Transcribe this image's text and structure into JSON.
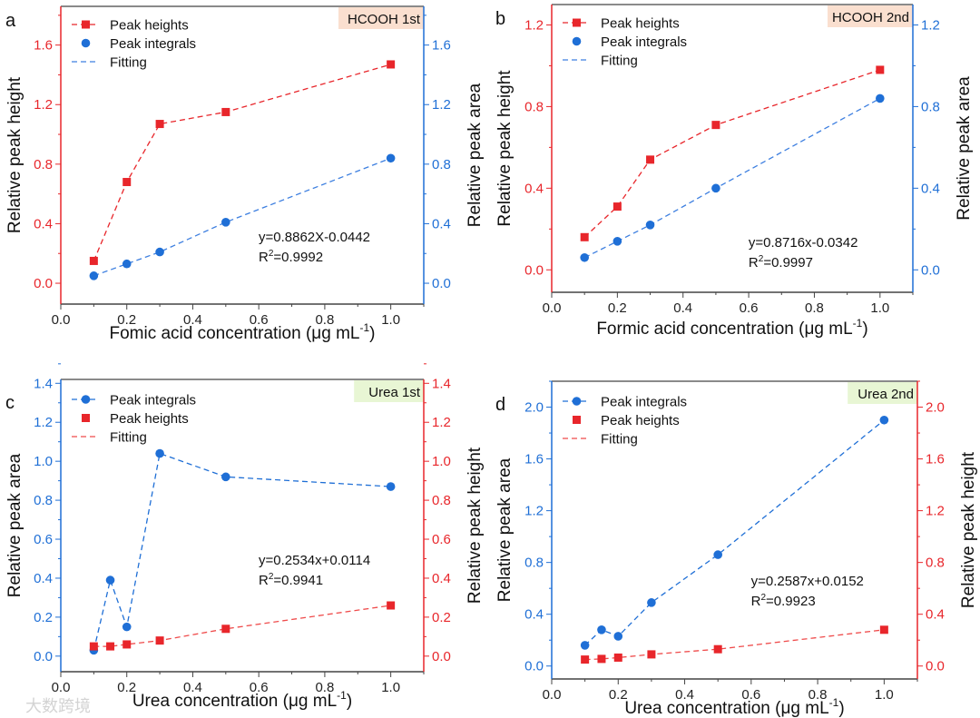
{
  "colors": {
    "red": "#e8262b",
    "blue": "#1f6fd6",
    "tag_hcooh": "#fadfcf",
    "tag_urea": "#e8f6d4",
    "fit_blue": "#3d7fe0",
    "fit_red": "#ef4b4b"
  },
  "watermark": "大数跨境",
  "chart_data": [
    {
      "panel": "a",
      "type": "line",
      "tag": "HCOOH  1st",
      "tag_color": "tag_hcooh",
      "xlabel": "Fomic acid concentration (μg mL",
      "xlabel_sup": "-1",
      "xlabel_end": ")",
      "ylabel_left": "Relative peak height",
      "ylabel_right": "Relative peak area",
      "left_color": "red",
      "right_color": "blue",
      "xlim": [
        0,
        1.1
      ],
      "ylim": [
        -0.14,
        1.86
      ],
      "xticks": [
        "0.0",
        "0.2",
        "0.4",
        "0.6",
        "0.8",
        "1.0"
      ],
      "yticks_left": [
        "0.0",
        "0.4",
        "0.8",
        "1.2",
        "1.6"
      ],
      "yticks_right": [
        "0.0",
        "0.4",
        "0.8",
        "1.2",
        "1.6"
      ],
      "x": [
        0.1,
        0.2,
        0.3,
        0.5,
        1.0
      ],
      "series": [
        {
          "name": "Peak heights",
          "color": "red",
          "marker": "square",
          "line": true,
          "values": [
            0.15,
            0.68,
            1.07,
            1.15,
            1.47
          ]
        },
        {
          "name": "Peak integrals",
          "color": "blue",
          "marker": "circle",
          "line": false,
          "values": [
            0.05,
            0.13,
            0.21,
            0.41,
            0.84
          ]
        },
        {
          "name": "Fitting",
          "color": "fit_blue",
          "marker": "none",
          "line": true,
          "fit_of": 1
        }
      ],
      "equation": "y=0.8862X-0.0442",
      "r2_prefix": "R",
      "r2_value": "=0.9992"
    },
    {
      "panel": "b",
      "type": "line",
      "tag": "HCOOH  2nd",
      "tag_color": "tag_hcooh",
      "xlabel": "Formic acid concentration (μg mL",
      "xlabel_sup": "-1",
      "xlabel_end": ")",
      "ylabel_left": "Relative peak height",
      "ylabel_right": "Relative peak area",
      "left_color": "red",
      "right_color": "blue",
      "xlim": [
        0,
        1.1
      ],
      "ylim": [
        -0.11,
        1.3
      ],
      "xticks": [
        "0.0",
        "0.2",
        "0.4",
        "0.6",
        "0.8",
        "1.0"
      ],
      "yticks_left": [
        "0.0",
        "0.4",
        "0.8",
        "1.2"
      ],
      "yticks_right": [
        "0.0",
        "0.4",
        "0.8",
        "1.2"
      ],
      "x": [
        0.1,
        0.2,
        0.3,
        0.5,
        1.0
      ],
      "series": [
        {
          "name": "Peak heights",
          "color": "red",
          "marker": "square",
          "line": true,
          "values": [
            0.16,
            0.31,
            0.54,
            0.71,
            0.98
          ]
        },
        {
          "name": "Peak integrals",
          "color": "blue",
          "marker": "circle",
          "line": false,
          "values": [
            0.06,
            0.14,
            0.22,
            0.4,
            0.84
          ]
        },
        {
          "name": "Fitting",
          "color": "fit_blue",
          "marker": "none",
          "line": true,
          "fit_of": 1
        }
      ],
      "equation": "y=0.8716x-0.0342",
      "r2_prefix": "R",
      "r2_value": "=0.9997"
    },
    {
      "panel": "c",
      "type": "line",
      "tag": "Urea 1st",
      "tag_color": "tag_urea",
      "xlabel": "Urea concentration (μg mL",
      "xlabel_sup": "-1",
      "xlabel_end": ")",
      "ylabel_left": "Relative peak area",
      "ylabel_right": "Relative peak height",
      "left_color": "blue",
      "right_color": "red",
      "xlim": [
        0,
        1.1
      ],
      "ylim": [
        -0.08,
        1.42
      ],
      "xticks": [
        "0.0",
        "0.2",
        "0.4",
        "0.6",
        "0.8",
        "1.0"
      ],
      "yticks_left": [
        "0.0",
        "0.2",
        "0.4",
        "0.6",
        "0.8",
        "1.0",
        "1.2",
        "1.4"
      ],
      "yticks_right": [
        "0.0",
        "0.2",
        "0.4",
        "0.6",
        "0.8",
        "1.0",
        "1.2",
        "1.4"
      ],
      "x": [
        0.1,
        0.15,
        0.2,
        0.3,
        0.5,
        1.0
      ],
      "series": [
        {
          "name": "Peak integrals",
          "color": "blue",
          "marker": "circle",
          "line": true,
          "values": [
            0.03,
            0.39,
            0.15,
            1.04,
            0.92,
            0.87
          ]
        },
        {
          "name": "Peak heights",
          "color": "red",
          "marker": "square",
          "line": false,
          "values": [
            0.05,
            0.05,
            0.06,
            0.08,
            0.14,
            0.26
          ]
        },
        {
          "name": "Fitting",
          "color": "fit_red",
          "marker": "none",
          "line": true,
          "fit_of": 1
        }
      ],
      "equation": "y=0.2534x+0.0114",
      "r2_prefix": "R",
      "r2_value": "=0.9941"
    },
    {
      "panel": "d",
      "type": "line",
      "tag": "Urea 2nd",
      "tag_color": "tag_urea",
      "xlabel": "Urea concentration (μg mL",
      "xlabel_sup": "-1",
      "xlabel_end": ")",
      "ylabel_left": "Relative peak area",
      "ylabel_right": "Relative peak height",
      "left_color": "blue",
      "right_color": "red",
      "xlim": [
        0,
        1.1
      ],
      "ylim": [
        -0.1,
        2.2
      ],
      "xticks": [
        "0.0",
        "0.2",
        "0.4",
        "0.6",
        "0.8",
        "1.0"
      ],
      "yticks_left": [
        "0.0",
        "0.4",
        "0.8",
        "1.2",
        "1.6",
        "2.0"
      ],
      "yticks_right": [
        "0.0",
        "0.4",
        "0.8",
        "1.2",
        "1.6",
        "2.0"
      ],
      "x": [
        0.1,
        0.15,
        0.2,
        0.3,
        0.5,
        1.0
      ],
      "series": [
        {
          "name": "Peak integrals",
          "color": "blue",
          "marker": "circle",
          "line": true,
          "values": [
            0.16,
            0.28,
            0.23,
            0.49,
            0.86,
            1.9
          ]
        },
        {
          "name": "Peak heights",
          "color": "red",
          "marker": "square",
          "line": false,
          "values": [
            0.05,
            0.055,
            0.065,
            0.09,
            0.13,
            0.28
          ]
        },
        {
          "name": "Fitting",
          "color": "fit_red",
          "marker": "none",
          "line": true,
          "fit_of": 1
        }
      ],
      "equation": "y=0.2587x+0.0152",
      "r2_prefix": "R",
      "r2_value": "=0.9923"
    }
  ]
}
